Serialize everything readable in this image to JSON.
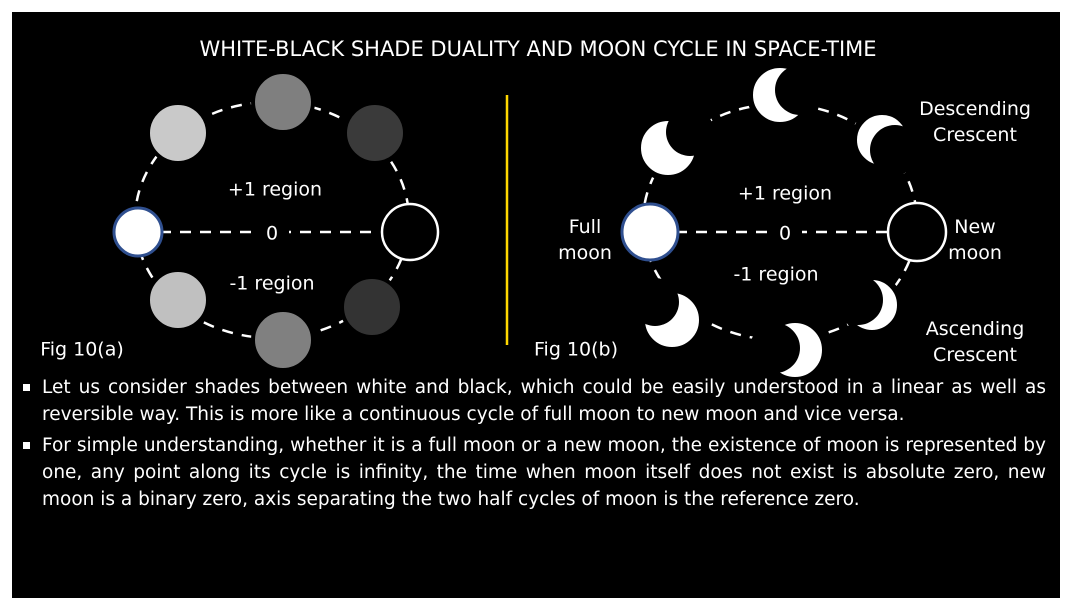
{
  "title": "WHITE-BLACK SHADE DUALITY AND MOON CYCLE IN SPACE-TIME",
  "fig_a": {
    "caption": "Fig 10(a)",
    "upper_label": "+1 region",
    "zero_label": "0",
    "lower_label": "-1 region"
  },
  "fig_b": {
    "caption": "Fig 10(b)",
    "upper_label": "+1 region",
    "zero_label": "0",
    "lower_label": "-1 region",
    "full_moon": "Full moon",
    "new_moon": "New moon",
    "descending": "Descending Crescent",
    "ascending": "Ascending Crescent"
  },
  "bullets": [
    "Let us consider shades between white and black, which could be easily understood in a linear as well as reversible way. This is more like a continuous cycle of full moon to new moon and vice versa.",
    "For simple understanding, whether it is a full moon or a new moon, the existence of moon is represented by one, any point along its cycle is infinity, the time when moon itself does not exist is absolute zero, new moon is a binary zero, axis separating the two half cycles of moon is the reference zero."
  ]
}
